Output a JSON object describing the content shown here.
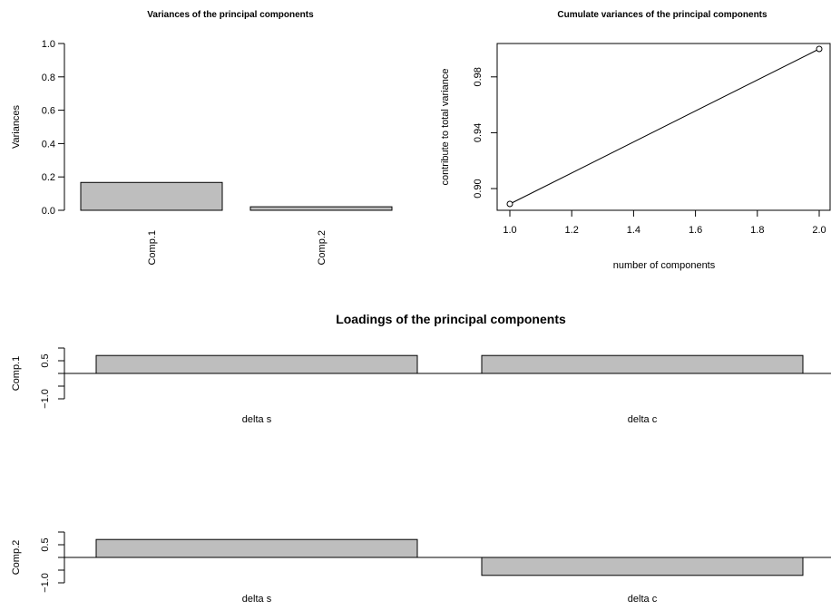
{
  "chart_data": [
    {
      "type": "bar",
      "title": "Variances of the principal components",
      "xlabel": "",
      "ylabel": "Variances",
      "categories": [
        "Comp.1",
        "Comp.2"
      ],
      "values": [
        0.167,
        0.021
      ],
      "ylim": [
        0,
        1
      ],
      "yticks": [
        "0.0",
        "0.2",
        "0.4",
        "0.6",
        "0.8",
        "1.0"
      ],
      "bar_color": "#bebebe"
    },
    {
      "type": "line",
      "title": "Cumulate variances of the principal components",
      "xlabel": "number of components",
      "ylabel": "contribute to total variance",
      "x": [
        1,
        2
      ],
      "y": [
        0.889,
        1.0
      ],
      "xlim": [
        1,
        2
      ],
      "ylim": [
        0.889,
        1.0
      ],
      "xticks": [
        "1.0",
        "1.2",
        "1.4",
        "1.6",
        "1.8",
        "2.0"
      ],
      "yticks": [
        "0.90",
        "0.94",
        "0.98"
      ],
      "marker": "open-circle",
      "box": true
    },
    {
      "type": "bar",
      "title": "Loadings of the principal components",
      "panels": [
        {
          "ylabel": "Comp.1",
          "categories": [
            "delta s",
            "delta c"
          ],
          "values": [
            0.707,
            0.707
          ],
          "ylim": [
            -1,
            1
          ],
          "yticks": [
            "0.5",
            "−1.0"
          ]
        },
        {
          "ylabel": "Comp.2",
          "categories": [
            "delta s",
            "delta c"
          ],
          "values": [
            0.707,
            -0.707
          ],
          "ylim": [
            -1,
            1
          ],
          "yticks": [
            "0.5",
            "−1.0"
          ]
        }
      ],
      "bar_color": "#bebebe"
    }
  ]
}
